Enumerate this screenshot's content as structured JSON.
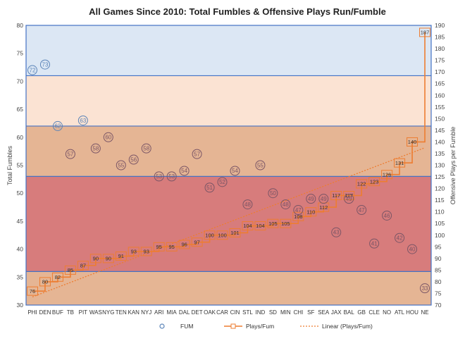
{
  "chart_data": {
    "type": "scatter+line",
    "title": "All Games Since 2010: Total Fumbles & Offensive Plays Run/Fumble",
    "ylabel_left": "Total Fumbles",
    "ylabel_right": "Offensive Plays per Fumble",
    "ylim_left": [
      30,
      80
    ],
    "ylim_right": [
      70,
      190
    ],
    "left_ticks": [
      30,
      35,
      40,
      45,
      50,
      55,
      60,
      65,
      70,
      75,
      80
    ],
    "right_ticks": [
      70,
      75,
      80,
      85,
      90,
      95,
      100,
      105,
      110,
      115,
      120,
      125,
      130,
      135,
      140,
      145,
      150,
      155,
      160,
      165,
      170,
      175,
      180,
      185,
      190
    ],
    "categories": [
      "PHI",
      "DEN",
      "BUF",
      "TB",
      "PIT",
      "WAS",
      "NYG",
      "TEN",
      "KAN",
      "NYJ",
      "ARI",
      "MIA",
      "DAL",
      "DET",
      "OAK",
      "CAR",
      "CIN",
      "STL",
      "IND",
      "SD",
      "MIN",
      "CHI",
      "SF",
      "SEA",
      "JAX",
      "BAL",
      "GB",
      "CLE",
      "NO",
      "ATL",
      "HOU",
      "NE"
    ],
    "series": [
      {
        "name": "FUM",
        "values": [
          72,
          73,
          62,
          57,
          63,
          58,
          60,
          55,
          56,
          58,
          53,
          53,
          54,
          57,
          51,
          52,
          54,
          48,
          55,
          50,
          48,
          47,
          49,
          49,
          43,
          49,
          47,
          41,
          46,
          42,
          40,
          33
        ]
      },
      {
        "name": "Plays/Fum",
        "values": [
          76,
          80,
          82,
          85,
          87,
          90,
          90,
          91,
          93,
          93,
          95,
          95,
          96,
          97,
          100,
          100,
          101,
          104,
          104,
          105,
          105,
          108,
          110,
          112,
          117,
          117,
          122,
          123,
          126,
          131,
          140,
          187
        ]
      },
      {
        "name": "Linear (Plays/Fum)",
        "line": [
          [
            0,
            73.5
          ],
          [
            31,
            137.5
          ]
        ]
      }
    ],
    "bands_left_axis": [
      {
        "from": 30,
        "to": 36,
        "color": "#e5b594"
      },
      {
        "from": 36,
        "to": 53,
        "color": "#d77c7c"
      },
      {
        "from": 53,
        "to": 62,
        "color": "#e5b594"
      },
      {
        "from": 62,
        "to": 71,
        "color": "#fbe3d3"
      },
      {
        "from": 71,
        "to": 80,
        "color": "#dce7f4"
      }
    ],
    "legend": {
      "position": "bottom",
      "items": [
        "FUM",
        "Plays/Fum",
        "Linear (Plays/Fum)"
      ]
    },
    "colors": {
      "fum": "#5b84b8",
      "plays": "#ed7d31",
      "trend": "#ed7d31",
      "band_line": "#4472c4"
    }
  }
}
